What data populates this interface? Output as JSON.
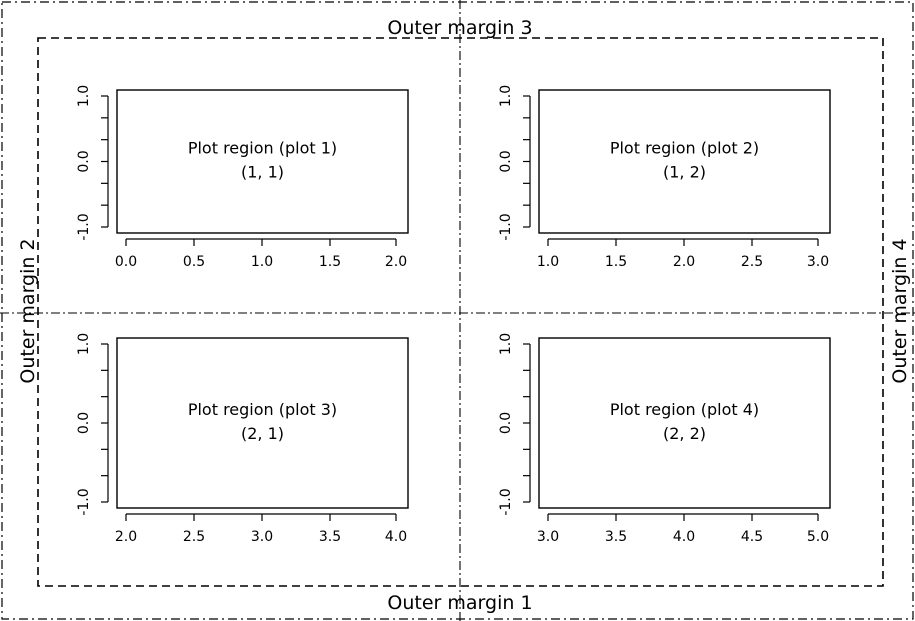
{
  "outer_margins": {
    "bottom": "Outer margin 1",
    "left": "Outer margin 2",
    "top": "Outer margin 3",
    "right": "Outer margin 4"
  },
  "panels": [
    {
      "label": "Plot region (plot 1)",
      "index": "(1, 1)",
      "x_ticks": [
        "0.0",
        "0.5",
        "1.0",
        "1.5",
        "2.0"
      ],
      "y_ticks": [
        "-1.0",
        "0.0",
        "1.0"
      ]
    },
    {
      "label": "Plot region (plot 2)",
      "index": "(1, 2)",
      "x_ticks": [
        "1.0",
        "1.5",
        "2.0",
        "2.5",
        "3.0"
      ],
      "y_ticks": [
        "-1.0",
        "0.0",
        "1.0"
      ]
    },
    {
      "label": "Plot region (plot 3)",
      "index": "(2, 1)",
      "x_ticks": [
        "2.0",
        "2.5",
        "3.0",
        "3.5",
        "4.0"
      ],
      "y_ticks": [
        "-1.0",
        "0.0",
        "1.0"
      ]
    },
    {
      "label": "Plot region (plot 4)",
      "index": "(2, 2)",
      "x_ticks": [
        "3.0",
        "3.5",
        "4.0",
        "4.5",
        "5.0"
      ],
      "y_ticks": [
        "-1.0",
        "0.0",
        "1.0"
      ]
    }
  ],
  "colors": {
    "line": "#000000",
    "background": "#ffffff"
  }
}
